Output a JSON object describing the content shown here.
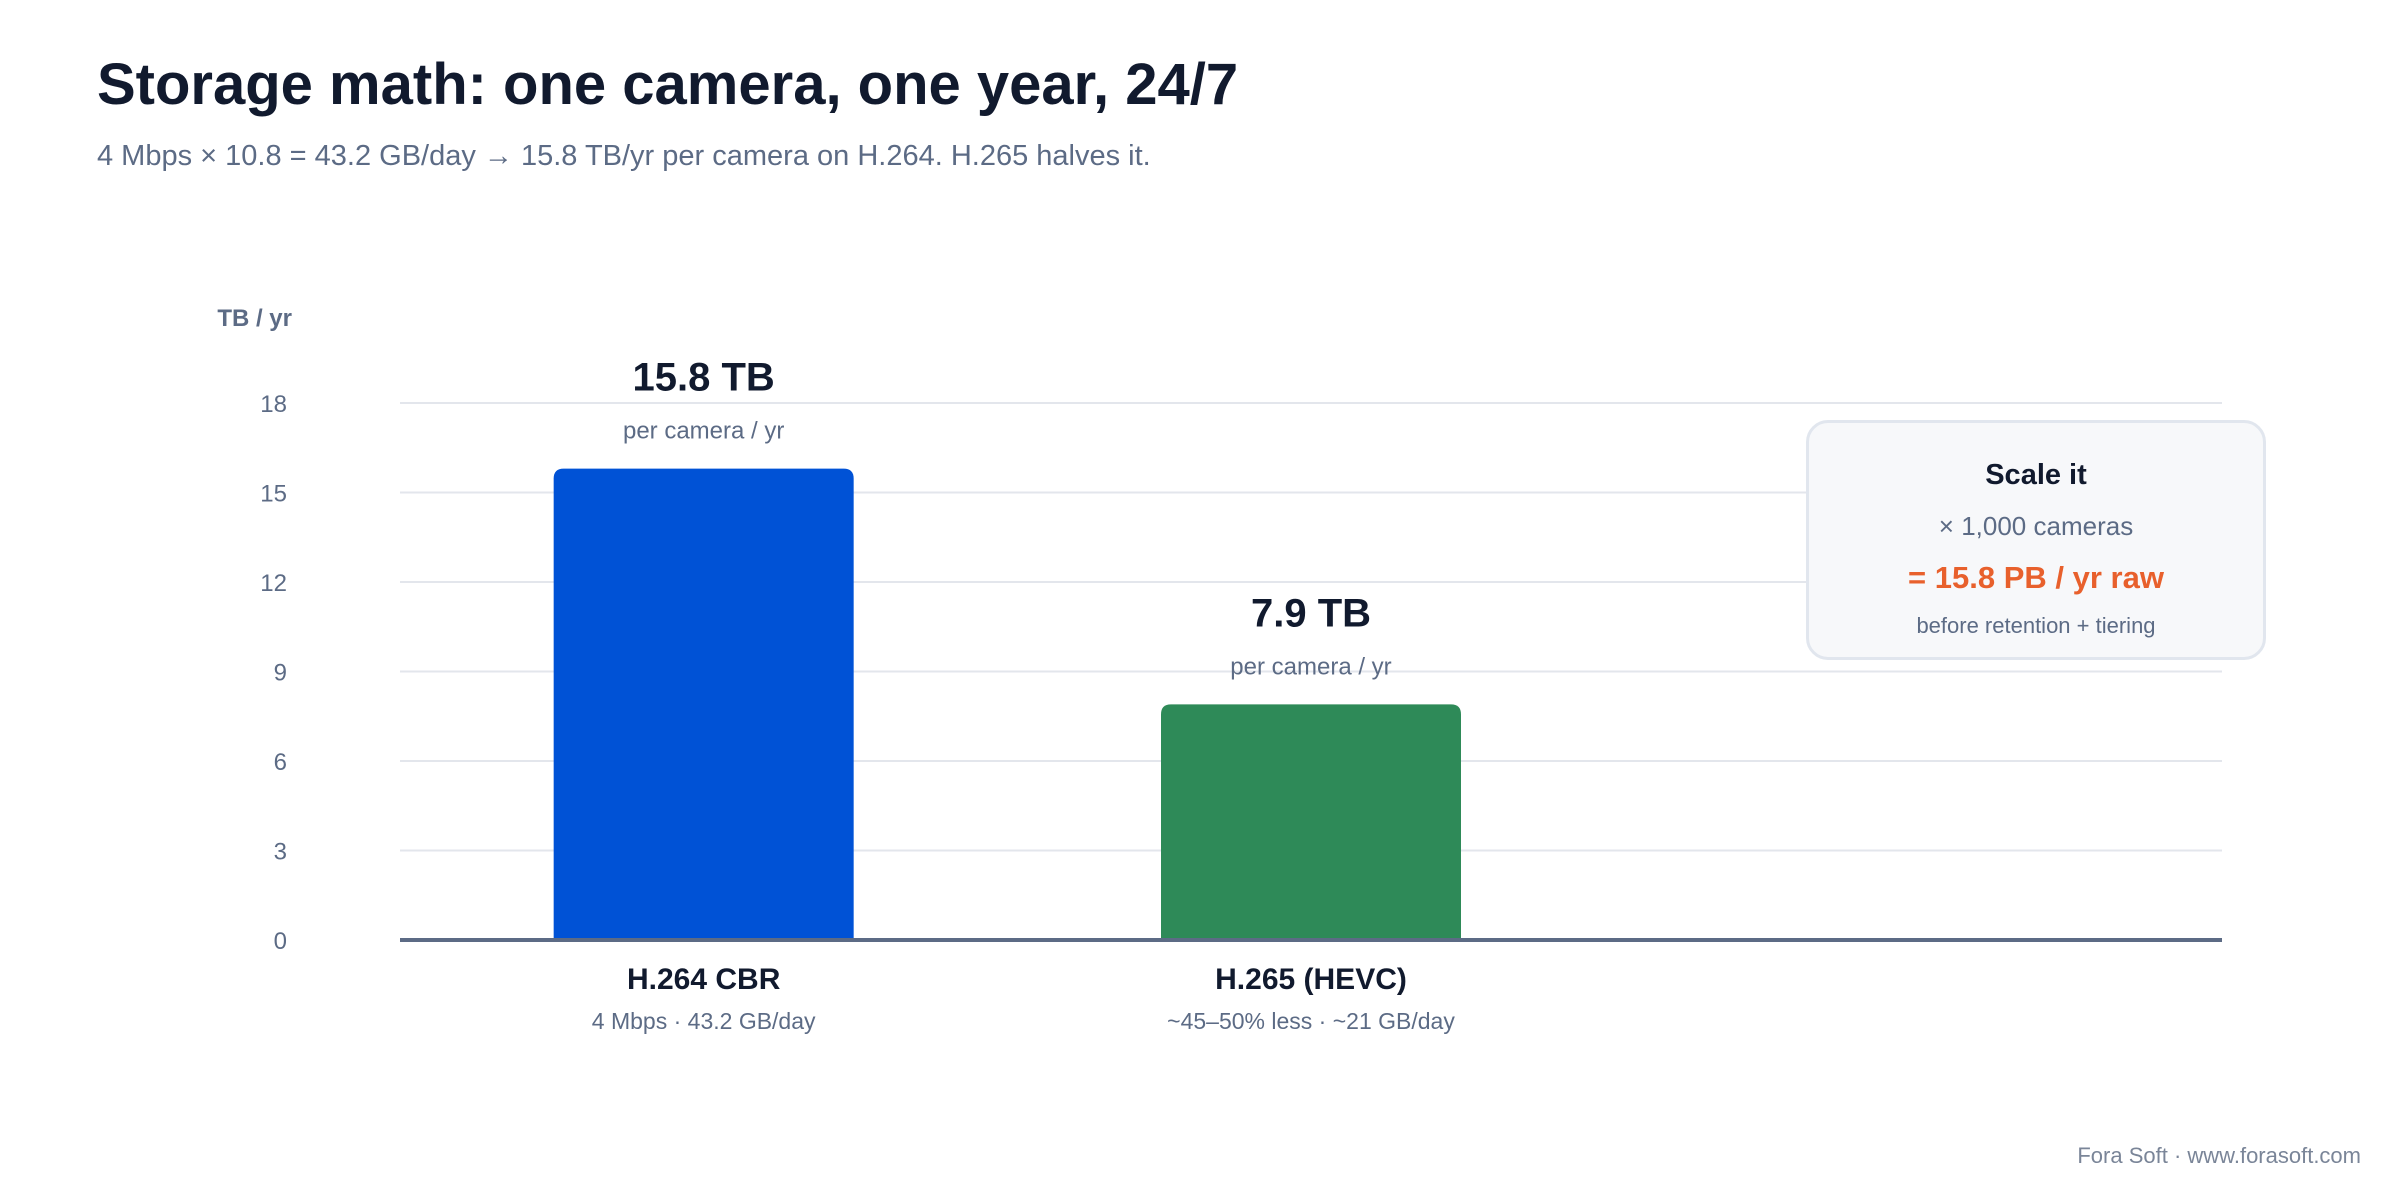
{
  "title": "Storage math: one camera, one year, 24/7",
  "subtitle": "4 Mbps × 10.8 = 43.2 GB/day → 15.8 TB/yr per camera on H.264. H.265 halves it.",
  "chart_data": {
    "type": "bar",
    "ylabel": "TB / yr",
    "ylim": [
      0,
      18
    ],
    "yticks": [
      0,
      3,
      6,
      9,
      12,
      15,
      18
    ],
    "grid": true,
    "categories": [
      "H.264 CBR",
      "H.265 (HEVC)"
    ],
    "category_sublabels": [
      "4 Mbps · 43.2 GB/day",
      "~45–50% less · ~21 GB/day"
    ],
    "values": [
      15.8,
      7.9
    ],
    "value_labels": [
      "15.8 TB",
      "7.9 TB"
    ],
    "value_sublabels": [
      "per camera / yr",
      "per camera / yr"
    ],
    "colors": [
      "#0052d6",
      "#2e8a58"
    ]
  },
  "callout": {
    "title": "Scale it",
    "line": "× 1,000 cameras",
    "highlight": "= 15.8 PB / yr raw",
    "note": "before retention + tiering",
    "highlight_color": "#e8602c"
  },
  "footer": "Fora Soft · www.forasoft.com"
}
